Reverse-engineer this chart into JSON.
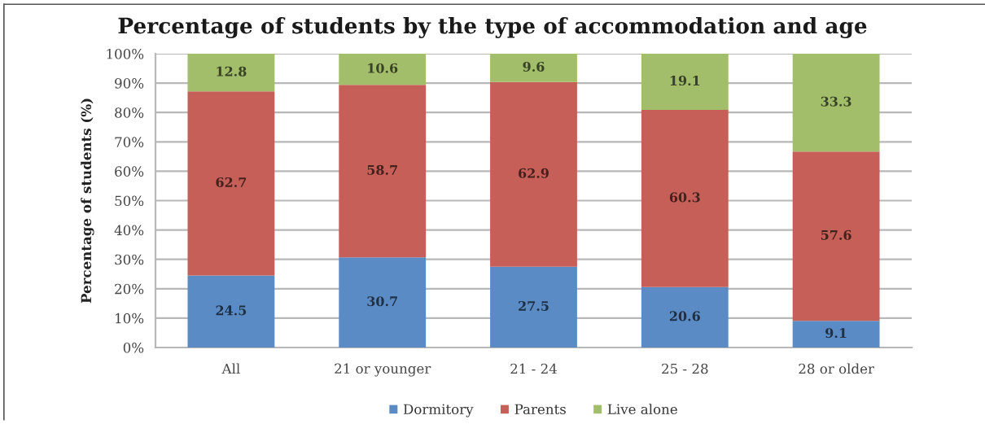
{
  "chart_data": {
    "type": "bar",
    "title": "Percentage of students by the type of accommodation and age",
    "ylabel": "Percentage of students (%)",
    "categories": [
      "All",
      "21 or younger",
      "21 - 24",
      "25 - 28",
      "28 or older"
    ],
    "series": [
      {
        "name": "Dormitory",
        "color": "#5b8bc5",
        "values": [
          24.5,
          30.7,
          27.5,
          20.6,
          9.1
        ]
      },
      {
        "name": "Parents",
        "color": "#c65f57",
        "values": [
          62.7,
          58.7,
          62.9,
          60.3,
          57.6
        ]
      },
      {
        "name": "Live alone",
        "color": "#a2be6a",
        "values": [
          12.8,
          10.6,
          9.6,
          19.1,
          33.3
        ]
      }
    ],
    "stacked": true,
    "data_labels": true,
    "ylim": [
      0,
      100
    ],
    "yticks": [
      {
        "value": 0,
        "label": "0%"
      },
      {
        "value": 10,
        "label": "10%"
      },
      {
        "value": 20,
        "label": "20%"
      },
      {
        "value": 30,
        "label": "30%"
      },
      {
        "value": 40,
        "label": "40%"
      },
      {
        "value": 50,
        "label": "50%"
      },
      {
        "value": 60,
        "label": "60%"
      },
      {
        "value": 70,
        "label": "70%"
      },
      {
        "value": 80,
        "label": "80%"
      },
      {
        "value": 90,
        "label": "90%"
      },
      {
        "value": 100,
        "label": "100%"
      }
    ],
    "grid": "y",
    "legend": "bottom"
  }
}
